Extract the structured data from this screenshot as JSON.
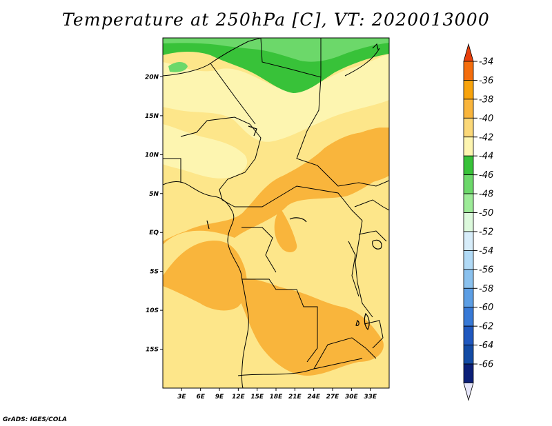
{
  "title": "Temperature at 250hPa [C], VT: 2020013000",
  "credit": "GrADS: IGES/COLA",
  "map": {
    "lon_range": [
      0,
      36
    ],
    "lat_range": [
      -20,
      25
    ],
    "background_color": "#fde68a",
    "lat_ticks": [
      {
        "value": 20,
        "label": "20N"
      },
      {
        "value": 15,
        "label": "15N"
      },
      {
        "value": 10,
        "label": "10N"
      },
      {
        "value": 5,
        "label": "5N"
      },
      {
        "value": 0,
        "label": "EQ"
      },
      {
        "value": -5,
        "label": "5S"
      },
      {
        "value": -10,
        "label": "10S"
      },
      {
        "value": -15,
        "label": "15S"
      }
    ],
    "lon_ticks": [
      {
        "value": 3,
        "label": "3E"
      },
      {
        "value": 6,
        "label": "6E"
      },
      {
        "value": 9,
        "label": "9E"
      },
      {
        "value": 12,
        "label": "12E"
      },
      {
        "value": 15,
        "label": "15E"
      },
      {
        "value": 18,
        "label": "18E"
      },
      {
        "value": 21,
        "label": "21E"
      },
      {
        "value": 24,
        "label": "24E"
      },
      {
        "value": 27,
        "label": "27E"
      },
      {
        "value": 30,
        "label": "30E"
      },
      {
        "value": 33,
        "label": "33E"
      }
    ]
  },
  "colorbar": {
    "levels": [
      "-34",
      "-36",
      "-38",
      "-40",
      "-42",
      "-44",
      "-46",
      "-48",
      "-50",
      "-52",
      "-54",
      "-56",
      "-58",
      "-60",
      "-62",
      "-64",
      "-66"
    ],
    "colors": [
      "#e8400c",
      "#f46d0c",
      "#f8a30c",
      "#f9b53c",
      "#fbd878",
      "#fdf5b0",
      "#38c239",
      "#6cd86a",
      "#9deb98",
      "#dcf9dc",
      "#d7edfa",
      "#b1daf6",
      "#8ac1ee",
      "#5c9ee4",
      "#3779d6",
      "#1f58bf",
      "#134ba5",
      "#0b1f78",
      "#e6e6fa"
    ]
  }
}
